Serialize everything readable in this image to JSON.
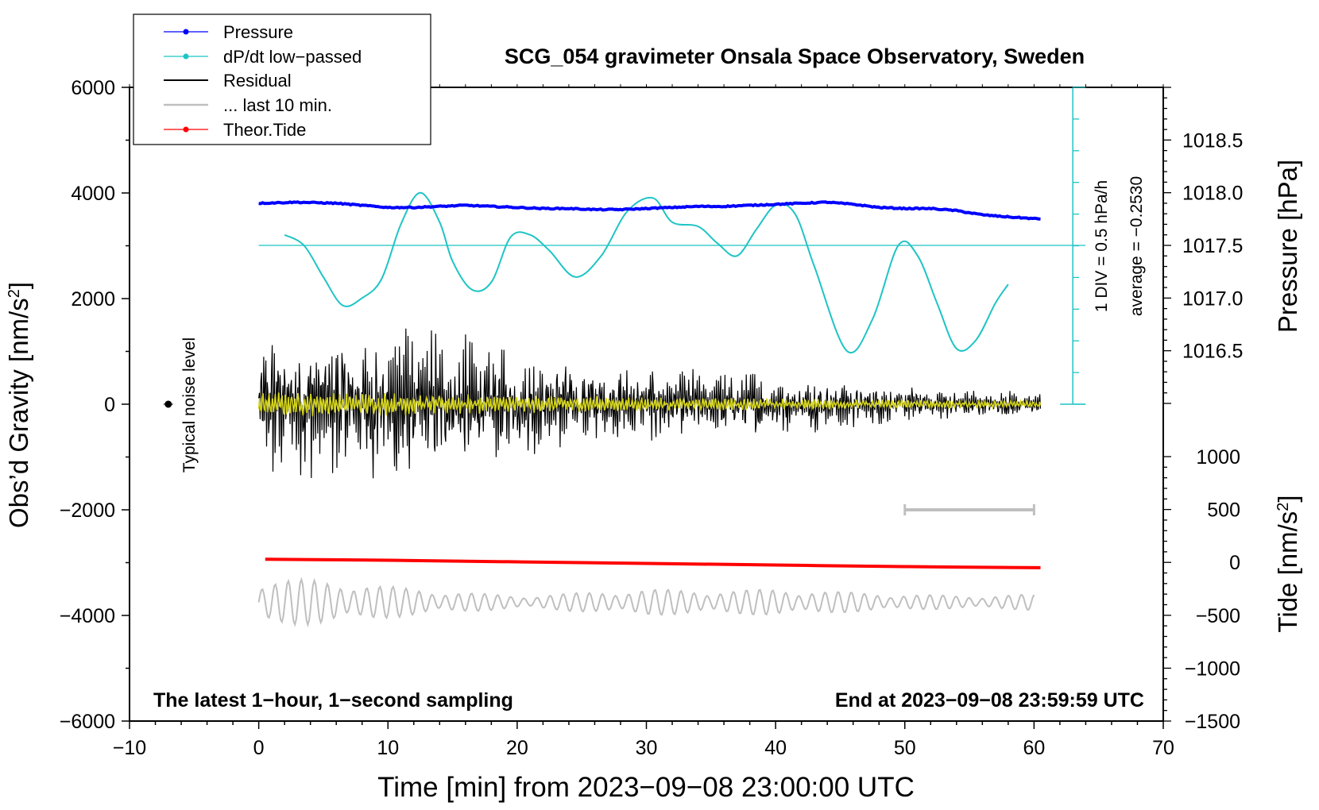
{
  "chart_data": {
    "type": "line",
    "title": "SCG_054 gravimeter Onsala Space Observatory, Sweden",
    "xlabel": "Time [min] from 2023−09−08 23:00:00 UTC",
    "ylabel_left_base": "Obs’d Gravity [nm/s",
    "ylabel_left_sup": "2",
    "ylabel_left_end": "]",
    "ylabel_right_pressure": "Pressure [hPa]",
    "ylabel_right_tide_base": "Tide [nm/s",
    "ylabel_right_tide_sup": "2",
    "ylabel_right_tide_end": "]",
    "xlim": [
      -10,
      70
    ],
    "ylim": [
      -6000,
      6000
    ],
    "x_ticks": [
      {
        "v": -10,
        "label": "−10"
      },
      {
        "v": 0,
        "label": "0"
      },
      {
        "v": 10,
        "label": "10"
      },
      {
        "v": 20,
        "label": "20"
      },
      {
        "v": 30,
        "label": "30"
      },
      {
        "v": 40,
        "label": "40"
      },
      {
        "v": 50,
        "label": "50"
      },
      {
        "v": 60,
        "label": "60"
      },
      {
        "v": 70,
        "label": "70"
      }
    ],
    "y_ticks": [
      {
        "v": 6000,
        "label": "6000"
      },
      {
        "v": 4000,
        "label": "4000"
      },
      {
        "v": 2000,
        "label": "2000"
      },
      {
        "v": 0,
        "label": "0"
      },
      {
        "v": -2000,
        "label": "−2000"
      },
      {
        "v": -4000,
        "label": "−4000"
      },
      {
        "v": -6000,
        "label": "−6000"
      }
    ],
    "pressure_axis": {
      "lim": [
        1016.0,
        1019.0
      ],
      "ticks": [
        {
          "v": 1018.5,
          "label": "1018.5"
        },
        {
          "v": 1018.0,
          "label": "1018.0"
        },
        {
          "v": 1017.5,
          "label": "1017.5"
        },
        {
          "v": 1017.0,
          "label": "1017.0"
        },
        {
          "v": 1016.5,
          "label": "1016.5"
        }
      ]
    },
    "tide_axis": {
      "lim": [
        -1500,
        1000
      ],
      "ticks": [
        {
          "v": 1000,
          "label": "1000"
        },
        {
          "v": 500,
          "label": "500"
        },
        {
          "v": 0,
          "label": "0"
        },
        {
          "v": -500,
          "label": "−500"
        },
        {
          "v": -1000,
          "label": "−1000"
        },
        {
          "v": -1500,
          "label": "−1500"
        }
      ]
    },
    "series": [
      {
        "name": "Pressure",
        "color": "#0000ff",
        "axis": "pressure",
        "x": [
          0,
          3,
          6,
          8,
          10,
          12,
          14,
          16,
          18,
          20,
          22,
          24,
          26,
          28,
          30,
          32,
          34,
          36,
          38,
          40,
          42,
          44,
          46,
          48,
          50,
          52,
          54,
          56,
          58,
          60.5
        ],
        "y": [
          1017.9,
          1017.91,
          1017.9,
          1017.88,
          1017.86,
          1017.86,
          1017.87,
          1017.88,
          1017.87,
          1017.86,
          1017.85,
          1017.85,
          1017.84,
          1017.84,
          1017.85,
          1017.86,
          1017.87,
          1017.87,
          1017.88,
          1017.89,
          1017.9,
          1017.91,
          1017.89,
          1017.86,
          1017.85,
          1017.85,
          1017.83,
          1017.79,
          1017.77,
          1017.75
        ]
      },
      {
        "name": "dP/dt low−passed",
        "color": "#1fc4c4",
        "axis": "pressure",
        "x": [
          2.0,
          3.5,
          5.0,
          6.5,
          8.0,
          9.5,
          11.0,
          12.5,
          14.0,
          15.0,
          16.5,
          18.0,
          19.5,
          21.0,
          22.5,
          24.5,
          26.5,
          28.5,
          30.5,
          32.0,
          34.0,
          35.5,
          37.0,
          38.5,
          40.0,
          41.5,
          43.0,
          45.5,
          47.5,
          49.5,
          51.0,
          52.5,
          54.0,
          55.5,
          57.0,
          58.0
        ],
        "y": [
          1017.6,
          1017.5,
          1017.2,
          1016.93,
          1017.0,
          1017.18,
          1017.7,
          1018.0,
          1017.72,
          1017.35,
          1017.08,
          1017.15,
          1017.58,
          1017.6,
          1017.45,
          1017.2,
          1017.4,
          1017.82,
          1017.95,
          1017.72,
          1017.68,
          1017.52,
          1017.4,
          1017.65,
          1017.88,
          1017.8,
          1017.3,
          1016.5,
          1016.8,
          1017.5,
          1017.4,
          1016.95,
          1016.52,
          1016.6,
          1016.95,
          1017.13
        ]
      },
      {
        "name": "Residual",
        "color": "#000000",
        "axis": "gravity",
        "x_range": [
          0,
          60.5
        ]
      },
      {
        "name": "... last 10 min.",
        "color": "#bfbfbf",
        "axis": "gravity",
        "x_range": [
          0,
          60
        ]
      },
      {
        "name": "Theor.Tide",
        "color": "#ff0000",
        "axis": "tide",
        "x": [
          0.5,
          10,
          20,
          30,
          40,
          50,
          60.5
        ],
        "y": [
          30,
          20,
          5,
          -10,
          -25,
          -40,
          -50
        ]
      }
    ],
    "residual_envelope": {
      "x": [
        0,
        5,
        10,
        15,
        20,
        25,
        30,
        35,
        40,
        45,
        50,
        55,
        60.5
      ],
      "amp": [
        1200,
        1200,
        1400,
        1100,
        900,
        700,
        650,
        550,
        500,
        400,
        300,
        250,
        180
      ]
    },
    "filtered_envelope": {
      "x": [
        0,
        10,
        20,
        30,
        40,
        50,
        60.5
      ],
      "amp": [
        230,
        210,
        170,
        130,
        110,
        90,
        70
      ]
    },
    "gray_wave_baseline": -3750,
    "gray_wave_envelope": {
      "x": [
        0,
        5,
        10,
        15,
        20,
        25,
        30,
        35,
        40,
        45,
        50,
        55,
        60
      ],
      "amp": [
        450,
        420,
        300,
        200,
        120,
        180,
        250,
        220,
        250,
        200,
        150,
        120,
        150
      ]
    },
    "noise_level": {
      "x": -7,
      "y": 0,
      "label": "Typical noise level"
    },
    "last_10min_bar": {
      "x_start": 50,
      "x_end": 60,
      "y": -2000
    },
    "pressure_scale": {
      "zero_line": 1017.5,
      "div_label": "1 DIV = 0.5 hPa/h",
      "average_label": "average = −0.2530",
      "x": 63
    },
    "legend_position": "top-left",
    "annotation_left": "The latest 1−hour, 1−second sampling",
    "annotation_right": "End at 2023−09−08 23:59:59 UTC",
    "grid": false
  }
}
